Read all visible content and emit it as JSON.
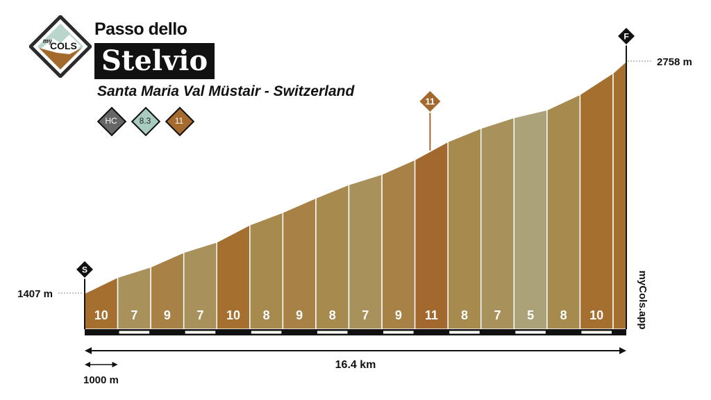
{
  "logo": {
    "line1": "my",
    "line2": "COLS"
  },
  "header": {
    "title_small": "Passo dello",
    "title_big": "Stelvio",
    "subtitle": "Santa Maria Val Müstair - Switzerland"
  },
  "badges": [
    {
      "label": "HC",
      "color": "#666666",
      "text_color": "#ffffff"
    },
    {
      "label": "8.3",
      "color": "#a8cdc0",
      "text_color": "#222222"
    },
    {
      "label": "11",
      "color": "#a46a2e",
      "text_color": "#ffffff"
    }
  ],
  "watermark": "myCols.app",
  "colors": {
    "grade_5": "#aca27a",
    "grade_7": "#a8915a",
    "grade_8": "#a68a4e",
    "grade_9": "#a88147",
    "grade_10": "#a5702f",
    "grade_11": "#a3682d"
  },
  "chart_data": {
    "type": "area",
    "start_marker": "S",
    "finish_marker": "F",
    "max_marker": "11",
    "start_elevation_label": "1407 m",
    "end_elevation_label": "2758 m",
    "distance_label": "16.4 km",
    "scale_label": "1000 m",
    "segment_km": [
      1,
      1,
      1,
      1,
      1,
      1,
      1,
      1,
      1,
      1,
      1,
      1,
      1,
      1,
      1,
      1,
      0.4
    ],
    "gradients": [
      10,
      7,
      9,
      7,
      10,
      8,
      9,
      8,
      7,
      9,
      11,
      8,
      7,
      5,
      8,
      10,
      null
    ],
    "elevations_m": [
      1407,
      1500,
      1560,
      1645,
      1705,
      1805,
      1878,
      1962,
      2040,
      2100,
      2185,
      2290,
      2368,
      2430,
      2475,
      2565,
      2690,
      2758
    ]
  }
}
